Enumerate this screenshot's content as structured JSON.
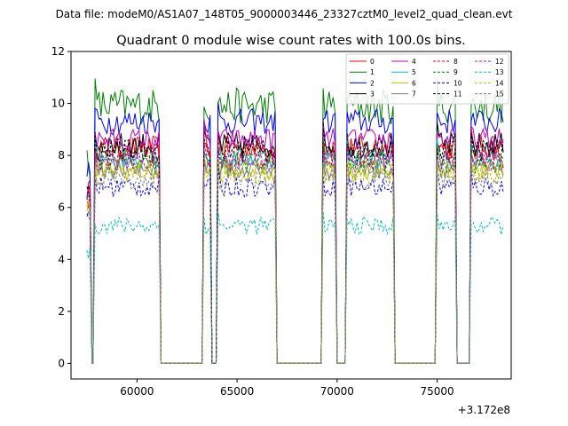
{
  "header": {
    "suptitle": "Data file: modeM0/AS1A07_148T05_9000003446_23327cztM0_level2_quad_clean.evt"
  },
  "chart_data": {
    "type": "line",
    "title": "Quadrant 0 module wise count rates with 100.0s bins.",
    "xlabel": "",
    "ylabel": "",
    "x_offset_label": "+3.172e8",
    "xlim": [
      56700,
      78700
    ],
    "ylim": [
      -0.6,
      12
    ],
    "xticks": [
      60000,
      65000,
      70000,
      75000
    ],
    "xtick_labels": [
      "60000",
      "65000",
      "70000",
      "75000"
    ],
    "yticks": [
      0,
      2,
      4,
      6,
      8,
      10,
      12
    ],
    "ytick_labels": [
      "0",
      "2",
      "4",
      "6",
      "8",
      "10",
      "12"
    ],
    "legend_position": "top-right",
    "segments": [
      {
        "start": 57500,
        "end": 57650,
        "steps": 2
      },
      {
        "start": 57900,
        "end": 61100,
        "steps": 32
      },
      {
        "start": 63350,
        "end": 63650,
        "steps": 3
      },
      {
        "start": 64050,
        "end": 66900,
        "steps": 28
      },
      {
        "start": 69300,
        "end": 69900,
        "steps": 6
      },
      {
        "start": 70500,
        "end": 72800,
        "steps": 23
      },
      {
        "start": 75000,
        "end": 75900,
        "steps": 9
      },
      {
        "start": 76700,
        "end": 78300,
        "steps": 16
      }
    ],
    "series": [
      {
        "name": "0",
        "color": "#ff0000",
        "dash": "solid",
        "level": 8.3,
        "noise": 0.45
      },
      {
        "name": "1",
        "color": "#008000",
        "dash": "solid",
        "level": 9.9,
        "noise": 0.7
      },
      {
        "name": "2",
        "color": "#0000ff",
        "dash": "solid",
        "level": 9.3,
        "noise": 0.5
      },
      {
        "name": "3",
        "color": "#000000",
        "dash": "solid",
        "level": 8.4,
        "noise": 0.5
      },
      {
        "name": "4",
        "color": "#c000c0",
        "dash": "solid",
        "level": 8.6,
        "noise": 0.45
      },
      {
        "name": "5",
        "color": "#00bfbf",
        "dash": "solid",
        "level": 7.9,
        "noise": 0.4
      },
      {
        "name": "6",
        "color": "#bfbf00",
        "dash": "solid",
        "level": 7.4,
        "noise": 0.4
      },
      {
        "name": "7",
        "color": "#808080",
        "dash": "solid",
        "level": 7.5,
        "noise": 0.4
      },
      {
        "name": "8",
        "color": "#ff0000",
        "dash": "dashed",
        "level": 8.0,
        "noise": 0.45
      },
      {
        "name": "9",
        "color": "#008000",
        "dash": "dashed",
        "level": 7.7,
        "noise": 0.4
      },
      {
        "name": "10",
        "color": "#0000ff",
        "dash": "dashed",
        "level": 6.8,
        "noise": 0.4
      },
      {
        "name": "11",
        "color": "#000000",
        "dash": "dashed",
        "level": 8.2,
        "noise": 0.45
      },
      {
        "name": "12",
        "color": "#c000c0",
        "dash": "dashed",
        "level": 7.8,
        "noise": 0.4
      },
      {
        "name": "13",
        "color": "#00bfbf",
        "dash": "dashed",
        "level": 5.3,
        "noise": 0.35
      },
      {
        "name": "14",
        "color": "#bfbf00",
        "dash": "dashed",
        "level": 7.3,
        "noise": 0.4
      },
      {
        "name": "15",
        "color": "#808080",
        "dash": "dashed",
        "level": 7.1,
        "noise": 0.4
      }
    ]
  }
}
